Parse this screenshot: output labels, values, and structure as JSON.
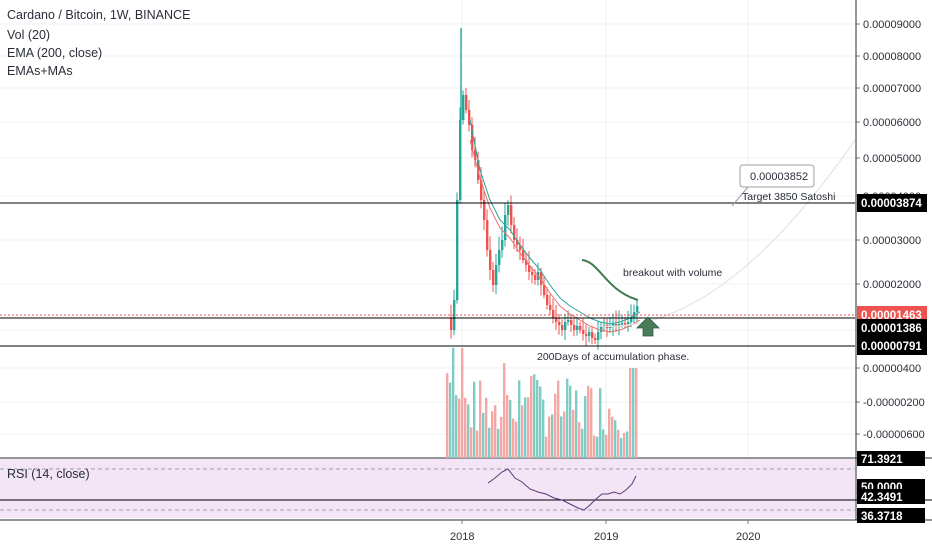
{
  "header": {
    "title": "Cardano / Bitcoin, 1W, BINANCE",
    "indicators": [
      "Vol (20)",
      "EMA (200, close)",
      "EMAs+MAs"
    ],
    "rsi_label": "RSI (14, close)"
  },
  "chart_data": {
    "type": "candlestick",
    "symbol": "Cardano / Bitcoin",
    "interval": "1W",
    "exchange": "BINANCE",
    "price_axis": {
      "ticks": [
        "0.00009000",
        "0.00008000",
        "0.00007000",
        "0.00006000",
        "0.00005000",
        "0.00004000",
        "0.00003000",
        "0.00002000",
        "0.00000400",
        "-0.00000200",
        "-0.00000600"
      ]
    },
    "time_axis": {
      "ticks": [
        "2018",
        "2019",
        "2020"
      ]
    },
    "price_labels": [
      {
        "value": "0.00003874",
        "style": "line"
      },
      {
        "value": "0.00001463",
        "style": "current"
      },
      {
        "value": "0.00001386",
        "style": "line"
      },
      {
        "value": "0.00000791",
        "style": "line"
      }
    ],
    "rsi": {
      "labels": [
        "71.3921",
        "50.0000",
        "42.3491",
        "36.3718"
      ]
    },
    "annotations": [
      {
        "text": "0.00003852",
        "kind": "callout"
      },
      {
        "text": "Target 3850 Satoshi"
      },
      {
        "text": "breakout with volume"
      },
      {
        "text": "200Days of accumulation phase."
      }
    ],
    "horizontal_lines": [
      "0.00003874",
      "0.00001463",
      "0.00001386",
      "0.00000791"
    ],
    "colors": {
      "up": "#26a69a",
      "down": "#ef5350",
      "vol_up": "#7fccc4",
      "vol_down": "#f4a7a5",
      "rsi_bg": "#f3e5f5",
      "ema": "#26a69a",
      "ma": "#e57373",
      "arrow": "#4a7c59",
      "current_price": "#ef5350"
    }
  }
}
